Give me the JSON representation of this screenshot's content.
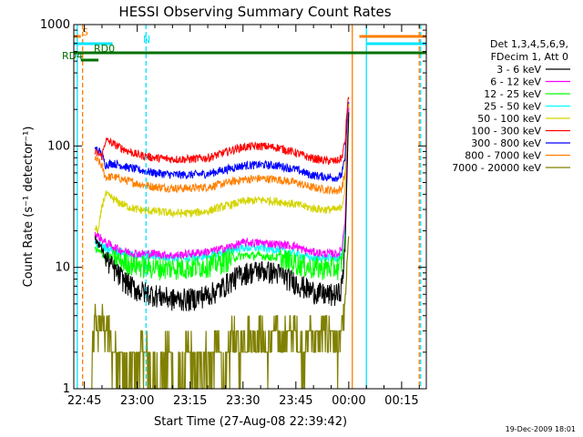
{
  "chart_data": {
    "type": "line",
    "title": "HESSI Observing Summary Count Rates",
    "xlabel": "Start Time (27-Aug-08 22:39:42)",
    "ylabel": "Count Rate (s⁻¹ detector⁻¹)",
    "y_scale": "log",
    "ylim": [
      1,
      1000
    ],
    "xlim_minutes": [
      -3,
      97
    ],
    "y_ticks": [
      "1",
      "10",
      "100",
      "1000"
    ],
    "x_ticks": [
      "22:45",
      "23:00",
      "23:15",
      "23:30",
      "23:45",
      "00:00",
      "00:15"
    ],
    "x_tick_minutes": [
      0,
      15,
      30,
      45,
      60,
      75,
      90
    ],
    "grid": false,
    "legend_position": "right",
    "legend_header": [
      "Det 1,3,4,5,6,9,",
      "FDecim 1, Att 0"
    ],
    "footer": "19-Dec-2009 18:01",
    "flags": [
      {
        "label": "S",
        "color": "#ff7f00",
        "segments": [
          [
            -3,
            -1
          ],
          [
            78,
            97
          ]
        ]
      },
      {
        "label": "N",
        "color": "#00e5ff",
        "segments": [
          [
            -3,
            8
          ],
          [
            80,
            97
          ]
        ]
      },
      {
        "label": "RD0",
        "color": "#007000",
        "segments": [
          [
            -3,
            97
          ]
        ]
      },
      {
        "label": "RD4",
        "color": "#007000",
        "segments": [
          [
            -1,
            4
          ]
        ]
      }
    ],
    "vertical_lines": [
      {
        "minute": -2,
        "color": "#00e5ff",
        "style": "solid"
      },
      {
        "minute": -0.5,
        "color": "#ff7f00",
        "style": "dashed"
      },
      {
        "minute": 17.5,
        "color": "#00e5ff",
        "style": "dashed"
      },
      {
        "minute": 76,
        "color": "#ff7f00",
        "style": "solid"
      },
      {
        "minute": 80,
        "color": "#00e5ff",
        "style": "solid"
      },
      {
        "minute": 95,
        "color": "#ff7f00",
        "style": "dashed"
      },
      {
        "minute": 95.4,
        "color": "#00e5ff",
        "style": "dashed"
      }
    ],
    "series": [
      {
        "name": "3 - 6 keV",
        "color": "#000000",
        "x": [
          3,
          4,
          5,
          6,
          8,
          10,
          12,
          15,
          20,
          25,
          30,
          35,
          38,
          42,
          45,
          50,
          55,
          60,
          62,
          64,
          68,
          71,
          72,
          73,
          74,
          74.5,
          75
        ],
        "y": [
          17,
          16,
          14,
          12,
          10,
          8.5,
          7.5,
          6.5,
          6,
          5.5,
          5.5,
          6,
          6.5,
          8,
          9,
          9.5,
          9,
          7.5,
          7,
          6.5,
          6,
          6,
          6,
          7,
          15,
          60,
          200
        ]
      },
      {
        "name": "6 - 12 keV",
        "color": "#ff00ff",
        "x": [
          3,
          4,
          5,
          6,
          8,
          10,
          12,
          15,
          20,
          25,
          30,
          35,
          38,
          42,
          45,
          50,
          55,
          60,
          62,
          64,
          68,
          71,
          72,
          73,
          74,
          74.5,
          75
        ],
        "y": [
          19,
          18,
          17,
          16,
          15,
          14,
          13.5,
          13,
          13,
          12.5,
          13,
          13.5,
          14,
          15,
          16,
          16,
          15.5,
          15,
          14,
          13.5,
          13,
          13,
          13,
          14,
          25,
          80,
          220
        ]
      },
      {
        "name": "12 - 25 keV",
        "color": "#00ff00",
        "x": [
          3,
          4,
          5,
          6,
          8,
          10,
          12,
          15,
          20,
          25,
          30,
          35,
          38,
          42,
          45,
          50,
          55,
          60,
          62,
          64,
          68,
          71,
          72,
          73,
          74,
          74.5,
          75
        ],
        "y": [
          14,
          13.5,
          13,
          12.5,
          12,
          11.5,
          11,
          10.5,
          10,
          10,
          10,
          10.5,
          11,
          12,
          12.5,
          12.5,
          12,
          11,
          10.5,
          10,
          10,
          10,
          10,
          11,
          18,
          60,
          180
        ]
      },
      {
        "name": "25 - 50 keV",
        "color": "#00ffff",
        "x": [
          3,
          4,
          5,
          6,
          8,
          10,
          12,
          15,
          20,
          25,
          30,
          35,
          38,
          42,
          45,
          50,
          55,
          60,
          62,
          64,
          68,
          71,
          72,
          73,
          74,
          74.5,
          75
        ],
        "y": [
          16,
          15.5,
          15,
          14.5,
          14,
          13.5,
          13,
          12.5,
          12.5,
          12,
          12,
          12.5,
          13,
          14,
          14.5,
          14.5,
          14,
          13,
          12.5,
          12,
          12,
          12,
          12,
          13,
          22,
          70,
          200
        ]
      },
      {
        "name": "50 - 100 keV",
        "color": "#d4d400",
        "x": [
          3,
          4,
          5,
          6,
          8,
          10,
          12,
          15,
          20,
          25,
          30,
          35,
          38,
          42,
          45,
          50,
          55,
          60,
          62,
          64,
          68,
          71,
          72,
          73,
          74,
          74.5,
          75
        ],
        "y": [
          21,
          20,
          32,
          40,
          37,
          34,
          32,
          30,
          29,
          28,
          28,
          29,
          31,
          33,
          35,
          36,
          35,
          33,
          32,
          31,
          30,
          30,
          30,
          32,
          45,
          120,
          220
        ]
      },
      {
        "name": "100 - 300 keV",
        "color": "#ff0000",
        "x": [
          3,
          4,
          5,
          6,
          8,
          10,
          12,
          15,
          20,
          25,
          30,
          35,
          38,
          42,
          45,
          50,
          55,
          60,
          62,
          64,
          68,
          71,
          72,
          73,
          74,
          74.5,
          75
        ],
        "y": [
          88,
          86,
          82,
          112,
          105,
          98,
          92,
          85,
          80,
          78,
          78,
          80,
          85,
          93,
          98,
          100,
          97,
          88,
          84,
          80,
          76,
          75,
          76,
          80,
          110,
          200,
          250
        ]
      },
      {
        "name": "300 - 800 keV",
        "color": "#0000ff",
        "x": [
          3,
          4,
          5,
          6,
          8,
          10,
          12,
          15,
          20,
          25,
          30,
          35,
          38,
          42,
          45,
          50,
          55,
          60,
          62,
          64,
          68,
          71,
          72,
          73,
          74,
          74.5,
          75
        ],
        "y": [
          95,
          92,
          85,
          70,
          72,
          70,
          67,
          64,
          60,
          58,
          58,
          59,
          62,
          66,
          69,
          70,
          69,
          64,
          61,
          58,
          56,
          55,
          55,
          58,
          80,
          160,
          230
        ]
      },
      {
        "name": "800 - 7000 keV",
        "color": "#ff7f00",
        "x": [
          3,
          4,
          5,
          6,
          8,
          10,
          12,
          15,
          20,
          25,
          30,
          35,
          38,
          42,
          45,
          50,
          55,
          60,
          62,
          64,
          68,
          71,
          72,
          73,
          74,
          74.5,
          75
        ],
        "y": [
          78,
          75,
          68,
          55,
          56,
          54,
          52,
          49,
          46,
          45,
          45,
          46,
          48,
          51,
          53,
          54,
          53,
          50,
          48,
          46,
          44,
          43,
          43,
          45,
          60,
          130,
          210
        ]
      },
      {
        "name": "7000 - 20000 keV",
        "color": "#808000",
        "x": [
          2,
          3,
          4,
          5,
          6,
          7,
          8,
          10,
          12,
          14,
          16,
          18,
          20,
          22,
          24,
          26,
          28,
          30,
          32,
          34,
          36,
          38,
          40,
          42,
          44,
          46,
          48,
          50,
          52,
          54,
          56,
          58,
          60,
          62,
          64,
          66,
          68,
          70,
          72,
          73,
          74,
          75
        ],
        "y": [
          1,
          4,
          3,
          4,
          3,
          3,
          2,
          2,
          1,
          1.5,
          2,
          2,
          1,
          1.5,
          2,
          1,
          1.5,
          2,
          1,
          2,
          1.5,
          2.5,
          1,
          3,
          2,
          3,
          2.5,
          3,
          2,
          3,
          2.5,
          3,
          3,
          2,
          3,
          2.5,
          3,
          3,
          2,
          3,
          5,
          20
        ]
      }
    ]
  }
}
